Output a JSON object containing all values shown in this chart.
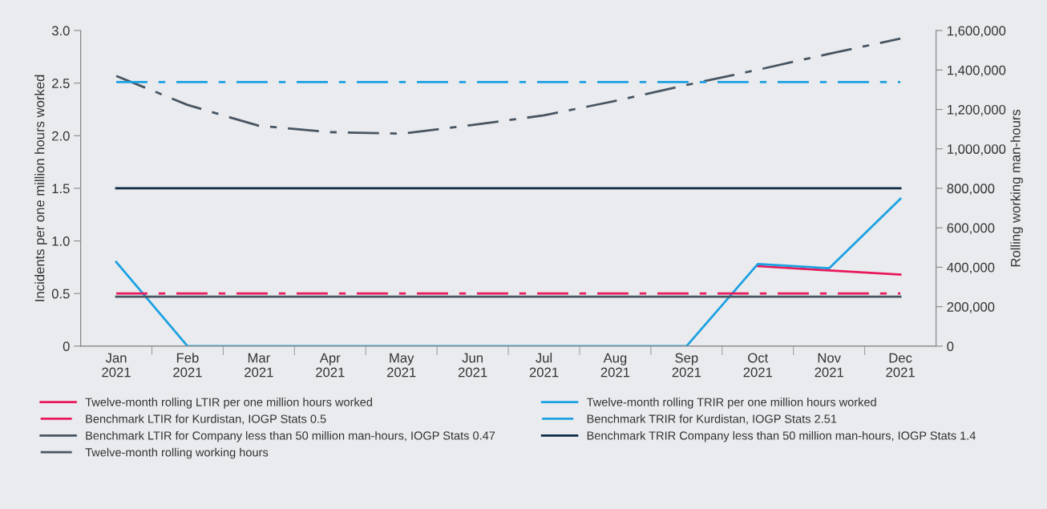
{
  "chart_data": {
    "type": "line",
    "categories": [
      "Jan\n2021",
      "Feb\n2021",
      "Mar\n2021",
      "Apr\n2021",
      "May\n2021",
      "Jun\n2021",
      "Jul\n2021",
      "Aug\n2021",
      "Sep\n2021",
      "Oct\n2021",
      "Nov\n2021",
      "Dec\n2021"
    ],
    "ylabel": "Incidents per one million hours worked",
    "y2label": "Rolling working man-hours",
    "ylim": [
      0,
      3.0
    ],
    "yticks": [
      {
        "value": 0,
        "label": "0"
      },
      {
        "value": 0.5,
        "label": "0.5"
      },
      {
        "value": 1.0,
        "label": "1.0"
      },
      {
        "value": 1.5,
        "label": "1.5"
      },
      {
        "value": 2.0,
        "label": "2.0"
      },
      {
        "value": 2.5,
        "label": "2.5"
      },
      {
        "value": 3.0,
        "label": "3.0"
      }
    ],
    "y2lim": [
      0,
      1600000
    ],
    "y2ticks": [
      {
        "value": 0,
        "label": "0"
      },
      {
        "value": 200000,
        "label": "200,000"
      },
      {
        "value": 400000,
        "label": "400,000"
      },
      {
        "value": 600000,
        "label": "600,000"
      },
      {
        "value": 800000,
        "label": "800,000"
      },
      {
        "value": 1000000,
        "label": "1,000,000"
      },
      {
        "value": 1200000,
        "label": "1,200,000"
      },
      {
        "value": 1400000,
        "label": "1,400,000"
      },
      {
        "value": 1600000,
        "label": "1,600,000"
      }
    ],
    "grid": false,
    "legend": "bottom",
    "marker": "none",
    "series": [
      {
        "name": "Twelve-month rolling LTIR per one million hours worked",
        "color": "#e8185a",
        "line_style": "solid",
        "values": [
          null,
          null,
          null,
          null,
          null,
          null,
          null,
          null,
          null,
          0.76,
          0.72,
          0.68
        ]
      },
      {
        "name": "Twelve-month rolling TRIR per one million hours worked",
        "color": "#1ba1e2",
        "line_style": "solid",
        "values": [
          0.8,
          0,
          0,
          0,
          0,
          0,
          0,
          0,
          0,
          0.78,
          0.74,
          1.4
        ]
      },
      {
        "name": "Benchmark LTIR for Kurdistan, IOGP Stats 0.5",
        "color": "#e8185a",
        "line_style": "dashdot",
        "values": [
          0.5,
          0.5,
          0.5,
          0.5,
          0.5,
          0.5,
          0.5,
          0.5,
          0.5,
          0.5,
          0.5,
          0.5
        ]
      },
      {
        "name": "Benchmark TRIR for Kurdistan, IOGP Stats 2.51",
        "color": "#1ba1e2",
        "line_style": "dashdot",
        "values": [
          2.51,
          2.51,
          2.51,
          2.51,
          2.51,
          2.51,
          2.51,
          2.51,
          2.51,
          2.51,
          2.51,
          2.51
        ]
      },
      {
        "name": "Benchmark LTIR for Company less than 50 million man-hours, IOGP Stats 0.47",
        "color": "#475563",
        "line_style": "solid",
        "values": [
          0.47,
          0.47,
          0.47,
          0.47,
          0.47,
          0.47,
          0.47,
          0.47,
          0.47,
          0.47,
          0.47,
          0.47
        ]
      },
      {
        "name": "Benchmark TRIR Company less than 50 million man-hours, IOGP Stats 1.4",
        "color": "#0f2a44",
        "line_style": "solid",
        "values": [
          1.5,
          1.5,
          1.5,
          1.5,
          1.5,
          1.5,
          1.5,
          1.5,
          1.5,
          1.5,
          1.5,
          1.5
        ]
      },
      {
        "name": "Twelve-month rolling working hours",
        "color": "#475563",
        "line_style": "dashdot",
        "axis": "y2",
        "values": [
          1370000,
          1223000,
          1117000,
          1085000,
          1077000,
          1121000,
          1170000,
          1243000,
          1324000,
          1401000,
          1482000,
          1559000
        ]
      }
    ]
  }
}
